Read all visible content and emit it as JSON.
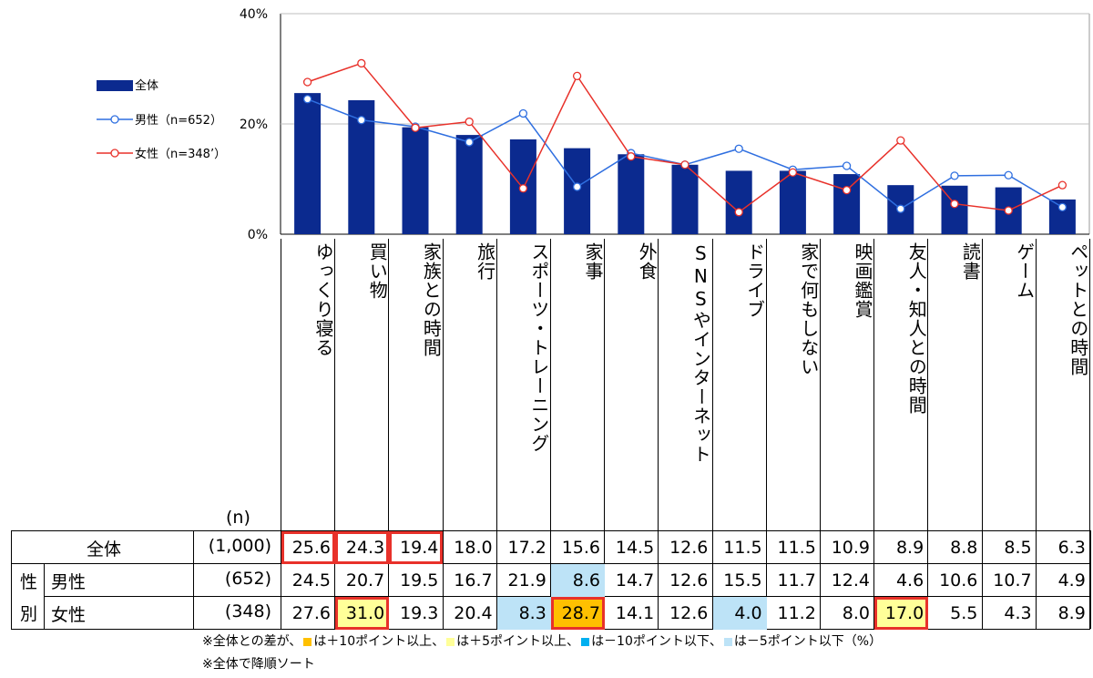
{
  "chart_data": {
    "type": "bar+line",
    "y_ticks": [
      "0%",
      "20%",
      "40%"
    ],
    "ylim": [
      0,
      40
    ],
    "categories": [
      "ゆっくり寝る",
      "買い物",
      "家族との時間",
      "旅行",
      "スポーツ・トレーニング",
      "家事",
      "外食",
      "SNSやインターネット",
      "ドライブ",
      "家で何もしない",
      "映画鑑賞",
      "友人・知人との時間",
      "読書",
      "ゲーム",
      "ペットとの時間"
    ],
    "legend": [
      {
        "name": "全体",
        "color": "#0b2a8f",
        "kind": "bar"
      },
      {
        "name": "男性（n=652）",
        "color": "#2f6fe0",
        "kind": "line"
      },
      {
        "name": "女性（n=348’）",
        "color": "#e8312a",
        "kind": "line"
      }
    ],
    "series": [
      {
        "name": "全体",
        "values": [
          25.6,
          24.3,
          19.4,
          18.0,
          17.2,
          15.6,
          14.5,
          12.6,
          11.5,
          11.5,
          10.9,
          8.9,
          8.8,
          8.5,
          6.3
        ]
      },
      {
        "name": "男性",
        "values": [
          24.5,
          20.7,
          19.5,
          16.7,
          21.9,
          8.6,
          14.7,
          12.6,
          15.5,
          11.7,
          12.4,
          4.6,
          10.6,
          10.7,
          4.9
        ]
      },
      {
        "name": "女性",
        "values": [
          27.6,
          31.0,
          19.3,
          20.4,
          8.3,
          28.7,
          14.1,
          12.6,
          4.0,
          11.2,
          8.0,
          17.0,
          5.5,
          4.3,
          8.9
        ]
      }
    ]
  },
  "table": {
    "n_header": "(n)",
    "side_label": [
      "性",
      "別"
    ],
    "rows": [
      {
        "label": "全体",
        "n": "(1,000)",
        "cells": [
          "25.6",
          "24.3",
          "19.4",
          "18.0",
          "17.2",
          "15.6",
          "14.5",
          "12.6",
          "11.5",
          "11.5",
          "10.9",
          "8.9",
          "8.8",
          "8.5",
          "6.3"
        ],
        "styles": [
          "boxed",
          "boxed",
          "boxed",
          "",
          "",
          "",
          "",
          "",
          "",
          "",
          "",
          "",
          "",
          "",
          ""
        ]
      },
      {
        "label": "男性",
        "n": "(652)",
        "cells": [
          "24.5",
          "20.7",
          "19.5",
          "16.7",
          "21.9",
          "8.6",
          "14.7",
          "12.6",
          "15.5",
          "11.7",
          "12.4",
          "4.6",
          "10.6",
          "10.7",
          "4.9"
        ],
        "styles": [
          "",
          "",
          "",
          "",
          "",
          "lblue",
          "",
          "",
          "",
          "",
          "",
          "",
          "",
          "",
          ""
        ]
      },
      {
        "label": "女性",
        "n": "(348)",
        "cells": [
          "27.6",
          "31.0",
          "19.3",
          "20.4",
          "8.3",
          "28.7",
          "14.1",
          "12.6",
          "4.0",
          "11.2",
          "8.0",
          "17.0",
          "5.5",
          "4.3",
          "8.9"
        ],
        "styles": [
          "",
          "yellow boxed",
          "",
          "",
          "lblue",
          "orange boxed",
          "",
          "",
          "lblue",
          "",
          "",
          "yellow boxed",
          "",
          "",
          ""
        ]
      }
    ]
  },
  "notes": {
    "line1_a": "※全体との差が、",
    "line1_b": "は＋10ポイント以上、",
    "line1_c": "は＋5ポイント以上、",
    "line1_d": "は－10ポイント以下、",
    "line1_e": "は－5ポイント以下（%）",
    "line2": "※全体で降順ソート"
  }
}
